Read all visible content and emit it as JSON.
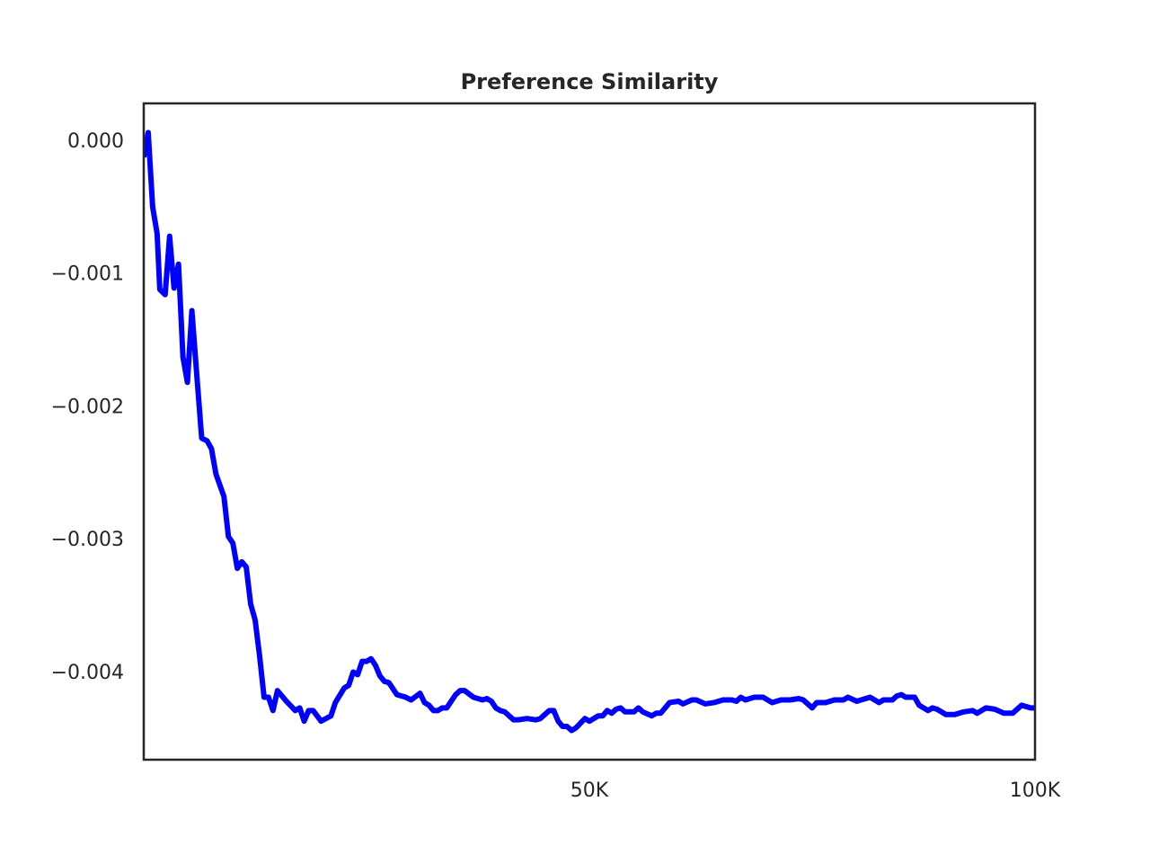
{
  "chart_data": {
    "type": "line",
    "title": "Preference Similarity",
    "x": [
      0,
      500,
      1000,
      1500,
      1800,
      2400,
      2900,
      3400,
      3900,
      4400,
      4900,
      5400,
      5900,
      6500,
      7100,
      7600,
      8100,
      9000,
      9500,
      10000,
      10500,
      11000,
      11500,
      12000,
      12500,
      13000,
      13500,
      14000,
      14500,
      15000,
      16000,
      17000,
      17500,
      18000,
      18500,
      19000,
      19900,
      21000,
      21500,
      22500,
      23000,
      23500,
      24000,
      24500,
      25000,
      25500,
      26000,
      26500,
      27000,
      27500,
      28400,
      29400,
      30000,
      31000,
      31500,
      32000,
      32500,
      33000,
      33500,
      34000,
      35000,
      35500,
      36000,
      37000,
      38000,
      38500,
      39000,
      39500,
      40000,
      40500,
      41000,
      41500,
      42000,
      43000,
      44000,
      44500,
      45000,
      45500,
      46000,
      46500,
      47000,
      47500,
      48000,
      48500,
      49500,
      50000,
      51000,
      51500,
      52000,
      52500,
      53000,
      53500,
      54000,
      55000,
      55500,
      56000,
      57000,
      57500,
      58000,
      59000,
      60000,
      60500,
      61500,
      62000,
      63000,
      64000,
      65000,
      66000,
      66500,
      67000,
      67500,
      68500,
      69500,
      70500,
      71500,
      72500,
      73500,
      74000,
      75000,
      75500,
      76500,
      77500,
      78500,
      79000,
      80000,
      81500,
      82500,
      83000,
      84000,
      84500,
      85000,
      85500,
      86500,
      87000,
      88000,
      88500,
      89000,
      90000,
      91000,
      92000,
      93000,
      93500,
      94500,
      95500,
      96500,
      97500,
      98500,
      99500,
      100000
    ],
    "series": [
      {
        "color": "#0000ff",
        "values": [
          -0.000115,
          7e-05,
          -0.00049,
          -0.00069,
          -0.00111,
          -0.00115,
          -0.00071,
          -0.0011,
          -0.00092,
          -0.00162,
          -0.00181,
          -0.00127,
          -0.00171,
          -0.00223,
          -0.00225,
          -0.00231,
          -0.0025,
          -0.00267,
          -0.00297,
          -0.00302,
          -0.00321,
          -0.00316,
          -0.0032,
          -0.00348,
          -0.0036,
          -0.00387,
          -0.00418,
          -0.00418,
          -0.00428,
          -0.00413,
          -0.00421,
          -0.00428,
          -0.00426,
          -0.00436,
          -0.00428,
          -0.00428,
          -0.00436,
          -0.00432,
          -0.00422,
          -0.00411,
          -0.00409,
          -0.00399,
          -0.00401,
          -0.00391,
          -0.00391,
          -0.00389,
          -0.00394,
          -0.00402,
          -0.00406,
          -0.00407,
          -0.00416,
          -0.00418,
          -0.0042,
          -0.00415,
          -0.00422,
          -0.00424,
          -0.00428,
          -0.00428,
          -0.00426,
          -0.00426,
          -0.00416,
          -0.00413,
          -0.00413,
          -0.00418,
          -0.0042,
          -0.00419,
          -0.00421,
          -0.00426,
          -0.00428,
          -0.00429,
          -0.00432,
          -0.00435,
          -0.00435,
          -0.00434,
          -0.00435,
          -0.00434,
          -0.00431,
          -0.00428,
          -0.00428,
          -0.00436,
          -0.0044,
          -0.0044,
          -0.00443,
          -0.00441,
          -0.00434,
          -0.00436,
          -0.00432,
          -0.00432,
          -0.00428,
          -0.0043,
          -0.00427,
          -0.00426,
          -0.00429,
          -0.00429,
          -0.00426,
          -0.00429,
          -0.00432,
          -0.0043,
          -0.0043,
          -0.00422,
          -0.00421,
          -0.00423,
          -0.0042,
          -0.0042,
          -0.00423,
          -0.00422,
          -0.0042,
          -0.0042,
          -0.00421,
          -0.00418,
          -0.0042,
          -0.00418,
          -0.00418,
          -0.00422,
          -0.0042,
          -0.0042,
          -0.00419,
          -0.0042,
          -0.00426,
          -0.00422,
          -0.00422,
          -0.0042,
          -0.0042,
          -0.00418,
          -0.00421,
          -0.00418,
          -0.00422,
          -0.0042,
          -0.0042,
          -0.00417,
          -0.00416,
          -0.00418,
          -0.00418,
          -0.00424,
          -0.00428,
          -0.00426,
          -0.00427,
          -0.00431,
          -0.00431,
          -0.00429,
          -0.00428,
          -0.0043,
          -0.00426,
          -0.00427,
          -0.0043,
          -0.0043,
          -0.00424,
          -0.00426,
          -0.00426
        ]
      }
    ],
    "xlim": [
      0,
      100000
    ],
    "xticks": [
      {
        "value": 50000,
        "label": "50K"
      },
      {
        "value": 100000,
        "label": "100K"
      }
    ],
    "ylim": [
      -0.00465,
      0.00029
    ],
    "yticks": [
      {
        "value": 0,
        "label": "0.000"
      },
      {
        "value": -0.001,
        "label": "−0.001"
      },
      {
        "value": -0.002,
        "label": "−0.002"
      },
      {
        "value": -0.003,
        "label": "−0.003"
      },
      {
        "value": -0.004,
        "label": "−0.004"
      }
    ]
  }
}
